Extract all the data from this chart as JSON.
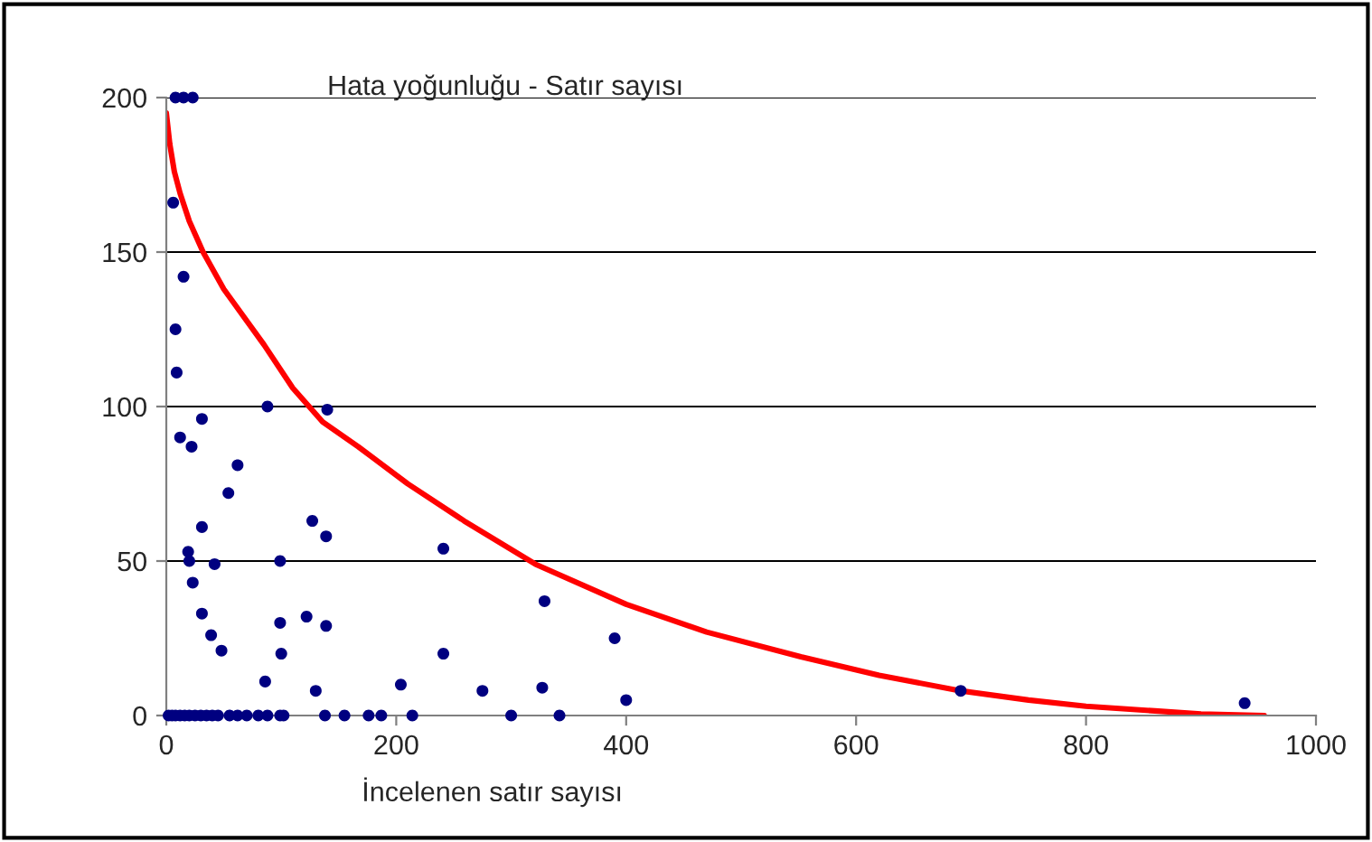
{
  "chart_data": {
    "type": "scatter",
    "title": "Hata yoğunluğu - Satır sayısı",
    "xlabel": "İncelenen satır sayısı",
    "xlim": [
      0,
      1000
    ],
    "xticks": [
      0,
      200,
      400,
      600,
      800,
      1000
    ],
    "ylim": [
      0,
      200
    ],
    "yticks": [
      0,
      50,
      100,
      150,
      200
    ],
    "grid": "y",
    "series": [
      {
        "marker": "circle",
        "color": "#000080",
        "x": [
          8,
          15,
          23,
          6,
          15,
          8,
          9,
          12,
          31,
          22,
          88,
          140,
          31,
          19,
          20,
          42,
          62,
          54,
          127,
          139,
          99,
          23,
          31,
          39,
          48,
          86,
          99,
          100,
          122,
          139,
          130,
          204,
          241,
          241,
          275,
          329,
          327,
          390,
          400,
          691,
          938,
          2,
          5,
          8,
          12,
          16,
          20,
          25,
          30,
          35,
          40,
          45,
          55,
          62,
          70,
          80,
          88,
          99,
          102,
          138,
          155,
          176,
          187,
          214,
          300,
          342
        ],
        "values": [
          200,
          200,
          200,
          166,
          142,
          125,
          111,
          90,
          96,
          87,
          100,
          99,
          61,
          53,
          50,
          49,
          81,
          72,
          63,
          58,
          50,
          43,
          33,
          26,
          21,
          11,
          30,
          20,
          32,
          29,
          8,
          10,
          54,
          20,
          8,
          37,
          9,
          25,
          5,
          8,
          4,
          0,
          0,
          0,
          0,
          0,
          0,
          0,
          0,
          0,
          0,
          0,
          0,
          0,
          0,
          0,
          0,
          0,
          0,
          0,
          0,
          0,
          0,
          0,
          0,
          0
        ]
      },
      {
        "type": "line",
        "color": "#ff0000",
        "line_style": "solid",
        "x": [
          0,
          3,
          7,
          12,
          20,
          32,
          50,
          85,
          110,
          136,
          167,
          210,
          259,
          321,
          400,
          470,
          552,
          620,
          691,
          750,
          800,
          860,
          900,
          955
        ],
        "values": [
          195,
          185,
          176,
          169,
          160,
          150,
          138,
          120,
          106,
          95,
          87,
          75,
          63,
          49,
          36,
          27,
          19,
          13,
          8,
          5,
          3,
          1.5,
          0.5,
          0
        ]
      }
    ]
  }
}
